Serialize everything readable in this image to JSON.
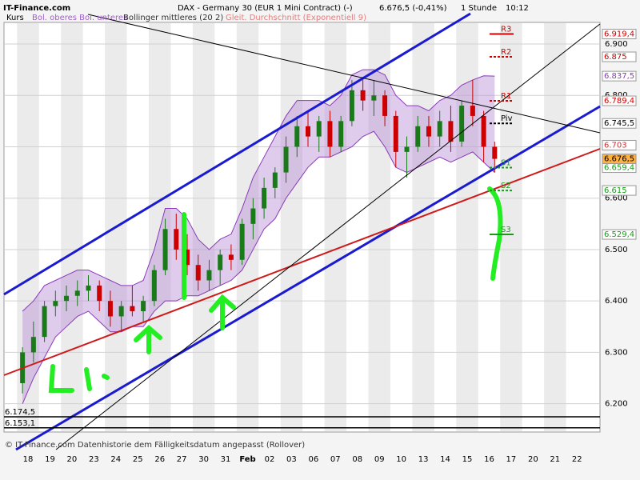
{
  "chart_data": {
    "type": "candlestick",
    "brand": "IT-Finance.com",
    "title": "DAX - Germany 30 (EUR 1 Mini Contract) (-)",
    "quote": "6.676,5 (-0,41%)",
    "interval": "1 Stunde",
    "time": "10:12",
    "legend": [
      "Kurs",
      "Bol. oberes Bol. unteres",
      "Bollinger mittleres (20 2)",
      "Gleit. Durchschnitt (Exponentiell 9)"
    ],
    "footer": "© IT-Finance.com Datenhistorie dem Fälligkeitsdatum angepasst (Rollover)",
    "categories": [
      "18",
      "19",
      "20",
      "23",
      "24",
      "25",
      "26",
      "27",
      "30",
      "31",
      "Feb",
      "02",
      "03",
      "06",
      "07",
      "08",
      "09",
      "10",
      "13",
      "14",
      "15",
      "16",
      "17",
      "20",
      "21",
      "22"
    ],
    "ylim": [
      6145,
      6942
    ],
    "yticks": [
      {
        "value": 6200,
        "label": "6.200"
      },
      {
        "value": 6300,
        "label": "6.300"
      },
      {
        "value": 6400,
        "label": "6.400"
      },
      {
        "value": 6500,
        "label": "6.500"
      },
      {
        "value": 6600,
        "label": "6.600"
      },
      {
        "value": 6700,
        "label": "6.700"
      },
      {
        "value": 6800,
        "label": "6.800"
      },
      {
        "value": 6900,
        "label": "6.900"
      }
    ],
    "grid": true,
    "up_color": "#1a7a1a",
    "down_color": "#cc0000",
    "band_color": "#b98fd8",
    "candles": [
      {
        "open": 6240,
        "high": 6310,
        "low": 6220,
        "close": 6300
      },
      {
        "open": 6300,
        "high": 6360,
        "low": 6280,
        "close": 6330
      },
      {
        "open": 6330,
        "high": 6400,
        "low": 6320,
        "close": 6390
      },
      {
        "open": 6390,
        "high": 6420,
        "low": 6370,
        "close": 6400
      },
      {
        "open": 6400,
        "high": 6430,
        "low": 6380,
        "close": 6410
      },
      {
        "open": 6410,
        "high": 6440,
        "low": 6390,
        "close": 6420
      },
      {
        "open": 6420,
        "high": 6450,
        "low": 6400,
        "close": 6430
      },
      {
        "open": 6430,
        "high": 6440,
        "low": 6380,
        "close": 6400
      },
      {
        "open": 6400,
        "high": 6420,
        "low": 6350,
        "close": 6370
      },
      {
        "open": 6370,
        "high": 6400,
        "low": 6340,
        "close": 6390
      },
      {
        "open": 6390,
        "high": 6430,
        "low": 6370,
        "close": 6380
      },
      {
        "open": 6380,
        "high": 6410,
        "low": 6360,
        "close": 6400
      },
      {
        "open": 6400,
        "high": 6470,
        "low": 6390,
        "close": 6460
      },
      {
        "open": 6460,
        "high": 6560,
        "low": 6450,
        "close": 6540
      },
      {
        "open": 6540,
        "high": 6570,
        "low": 6480,
        "close": 6500
      },
      {
        "open": 6500,
        "high": 6530,
        "low": 6450,
        "close": 6470
      },
      {
        "open": 6470,
        "high": 6490,
        "low": 6420,
        "close": 6440
      },
      {
        "open": 6440,
        "high": 6480,
        "low": 6420,
        "close": 6460
      },
      {
        "open": 6460,
        "high": 6500,
        "low": 6430,
        "close": 6490
      },
      {
        "open": 6490,
        "high": 6510,
        "low": 6460,
        "close": 6480
      },
      {
        "open": 6480,
        "high": 6560,
        "low": 6470,
        "close": 6550
      },
      {
        "open": 6550,
        "high": 6600,
        "low": 6520,
        "close": 6580
      },
      {
        "open": 6580,
        "high": 6640,
        "low": 6560,
        "close": 6620
      },
      {
        "open": 6620,
        "high": 6660,
        "low": 6600,
        "close": 6650
      },
      {
        "open": 6650,
        "high": 6720,
        "low": 6630,
        "close": 6700
      },
      {
        "open": 6700,
        "high": 6760,
        "low": 6680,
        "close": 6740
      },
      {
        "open": 6740,
        "high": 6770,
        "low": 6700,
        "close": 6720
      },
      {
        "open": 6720,
        "high": 6760,
        "low": 6690,
        "close": 6750
      },
      {
        "open": 6750,
        "high": 6770,
        "low": 6680,
        "close": 6700
      },
      {
        "open": 6700,
        "high": 6760,
        "low": 6690,
        "close": 6750
      },
      {
        "open": 6750,
        "high": 6830,
        "low": 6740,
        "close": 6810
      },
      {
        "open": 6810,
        "high": 6830,
        "low": 6770,
        "close": 6790
      },
      {
        "open": 6790,
        "high": 6830,
        "low": 6760,
        "close": 6800
      },
      {
        "open": 6800,
        "high": 6810,
        "low": 6740,
        "close": 6760
      },
      {
        "open": 6760,
        "high": 6770,
        "low": 6660,
        "close": 6690
      },
      {
        "open": 6690,
        "high": 6720,
        "low": 6640,
        "close": 6700
      },
      {
        "open": 6700,
        "high": 6760,
        "low": 6690,
        "close": 6740
      },
      {
        "open": 6740,
        "high": 6760,
        "low": 6700,
        "close": 6720
      },
      {
        "open": 6720,
        "high": 6770,
        "low": 6700,
        "close": 6750
      },
      {
        "open": 6750,
        "high": 6780,
        "low": 6690,
        "close": 6710
      },
      {
        "open": 6710,
        "high": 6790,
        "low": 6700,
        "close": 6780
      },
      {
        "open": 6780,
        "high": 6830,
        "low": 6740,
        "close": 6760
      },
      {
        "open": 6760,
        "high": 6770,
        "low": 6670,
        "close": 6700
      },
      {
        "open": 6700,
        "high": 6710,
        "low": 6650,
        "close": 6676.5
      }
    ],
    "band_upper": [
      6380,
      6400,
      6430,
      6440,
      6450,
      6460,
      6460,
      6450,
      6440,
      6430,
      6430,
      6440,
      6500,
      6580,
      6580,
      6560,
      6520,
      6500,
      6520,
      6530,
      6580,
      6640,
      6680,
      6720,
      6760,
      6790,
      6790,
      6790,
      6780,
      6800,
      6840,
      6850,
      6850,
      6840,
      6800,
      6780,
      6780,
      6770,
      6790,
      6800,
      6820,
      6830,
      6838,
      6837.5
    ],
    "band_lower": [
      6200,
      6250,
      6290,
      6330,
      6350,
      6370,
      6380,
      6360,
      6340,
      6340,
      6350,
      6350,
      6380,
      6400,
      6400,
      6410,
      6410,
      6420,
      6430,
      6440,
      6460,
      6500,
      6540,
      6560,
      6600,
      6630,
      6660,
      6680,
      6680,
      6690,
      6700,
      6720,
      6730,
      6700,
      6660,
      6650,
      6660,
      6670,
      6680,
      6670,
      6680,
      6690,
      6670,
      6650
    ],
    "levels": [
      {
        "name": "R3",
        "value": 6919.4,
        "label": "6.919,4",
        "color": "#d00000",
        "dash": false
      },
      {
        "name": "R2",
        "value": 6875,
        "label": "6.875",
        "color": "#d00000",
        "dash": true
      },
      {
        "name": "R1",
        "value": 6789.4,
        "label": "6.789,4",
        "color": "#d00000",
        "dash": true
      },
      {
        "name": "Piv",
        "value": 6745.5,
        "label": "6.745,5",
        "color": "#000000",
        "dash": true
      },
      {
        "name": "S1",
        "value": 6659.4,
        "label": "6.659,4",
        "color": "#1a9a1a",
        "dash": true
      },
      {
        "name": "S2",
        "value": 6615,
        "label": "6.615",
        "color": "#1a9a1a",
        "dash": true
      },
      {
        "name": "S3",
        "value": 6529.4,
        "label": "6.529,4",
        "color": "#1a9a1a",
        "dash": false
      }
    ],
    "price_labels": [
      {
        "value": 6837.5,
        "label": "6.837,5",
        "color": "#8a3ab8"
      },
      {
        "value": 6703,
        "label": "6.703",
        "color": "#d03030"
      },
      {
        "value": 6676.5,
        "label": "6.676,5",
        "color": "#000000"
      }
    ],
    "lower_levels": [
      {
        "value": 6174.5,
        "label": "6.174,5"
      },
      {
        "value": 6153.1,
        "label": "6.153,1"
      }
    ]
  }
}
